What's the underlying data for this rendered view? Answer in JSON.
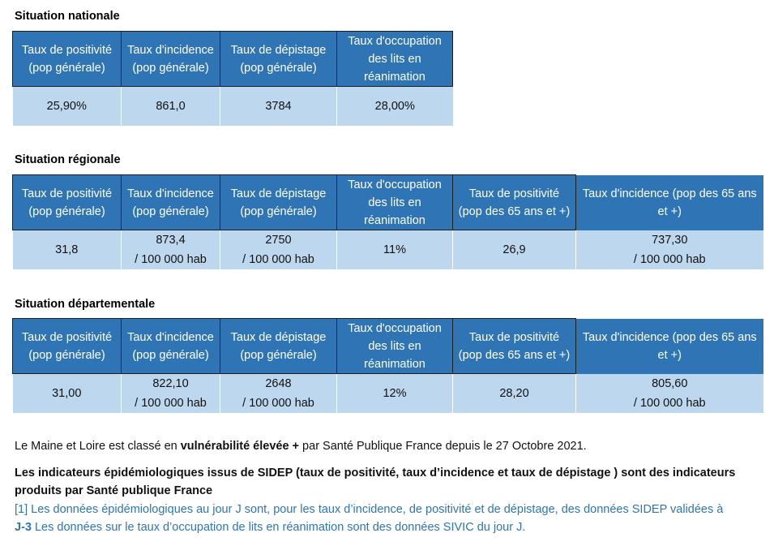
{
  "national": {
    "title": "Situation nationale",
    "headers": [
      [
        "Taux de positivité",
        "(pop générale)"
      ],
      [
        "Taux d'incidence",
        "(pop générale)"
      ],
      [
        "Taux de dépistage",
        "(pop générale)"
      ],
      [
        "Taux d'occupation",
        "des lits en",
        "réanimation"
      ]
    ],
    "values": [
      "25,90%",
      "861,0",
      "3784",
      "28,00%"
    ]
  },
  "regional": {
    "title": "Situation régionale",
    "headers": [
      [
        "Taux de positivité",
        "(pop générale)"
      ],
      [
        "Taux d'incidence",
        "(pop générale)"
      ],
      [
        "Taux de dépistage",
        "(pop générale)"
      ],
      [
        "Taux d'occupation",
        "des lits en",
        "réanimation"
      ],
      [
        "Taux de positivité",
        "(pop des 65 ans et +)"
      ],
      [
        "Taux d'incidence (pop des 65 ans",
        "et +)"
      ]
    ],
    "values": [
      [
        "31,8"
      ],
      [
        "873,4",
        "/ 100 000 hab"
      ],
      [
        "2750",
        "/ 100 000 hab"
      ],
      [
        "11%"
      ],
      [
        "26,9"
      ],
      [
        "737,30",
        "/ 100 000 hab"
      ]
    ]
  },
  "departmental": {
    "title": "Situation départementale",
    "headers": [
      [
        "Taux de positivité",
        "(pop générale)"
      ],
      [
        "Taux d'incidence",
        "(pop générale)"
      ],
      [
        "Taux de dépistage",
        "(pop générale)"
      ],
      [
        "Taux d'occupation",
        "des lits en",
        "réanimation"
      ],
      [
        "Taux de positivité",
        "(pop des 65 ans et +)"
      ],
      [
        "Taux d'incidence (pop des 65 ans",
        "et +)"
      ]
    ],
    "values": [
      [
        "31,00"
      ],
      [
        "822,10",
        "/ 100 000 hab"
      ],
      [
        "2648",
        "/ 100 000 hab"
      ],
      [
        "12%"
      ],
      [
        "28,20"
      ],
      [
        "805,60",
        "/ 100 000 hab"
      ]
    ]
  },
  "notes": {
    "vulnerability_prefix": "Le Maine et Loire est classé en ",
    "vulnerability_bold": "vulnérabilité élevée +",
    "vulnerability_suffix": " par Santé Publique France depuis le 27 Octobre 2021.",
    "sidep_line1": "Les indicateurs épidémiologiques issus de SIDEP (taux de positivité, taux d’incidence et taux de dépistage ) sont des indicateurs",
    "sidep_line2": "produits par Santé publique France",
    "footnote_line1": "[1] Les données épidémiologiques au jour J sont, pour les taux d’incidence, de positivité et de dépistage, des données SIDEP validées à",
    "footnote_bold": "J-3",
    "footnote_line2": " Les données sur le taux d’occupation de lits en réanimation sont des données SIVIC du jour J."
  },
  "colors": {
    "header_bg": "#2f75b5",
    "cell_bg": "#bdd7ee",
    "footnote": "#2e75b6"
  }
}
